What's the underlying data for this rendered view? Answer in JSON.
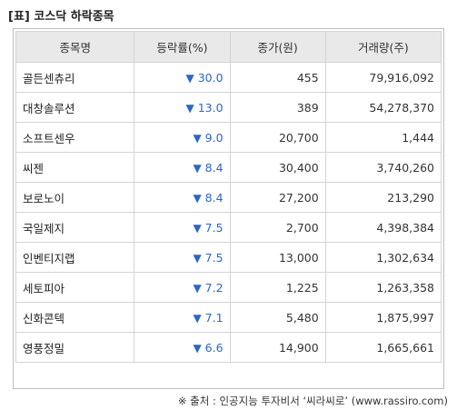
{
  "title": "[표] 코스닥 하락종목",
  "table": {
    "headers": [
      "종목명",
      "등락률(%)",
      "종가(원)",
      "거래량(주)"
    ],
    "rows": [
      {
        "name": "골든센츄리",
        "rate": "30.0",
        "close": "455",
        "volume": "79,916,092"
      },
      {
        "name": "대창솔루션",
        "rate": "13.0",
        "close": "389",
        "volume": "54,278,370"
      },
      {
        "name": "소프트센우",
        "rate": "9.0",
        "close": "20,700",
        "volume": "1,444"
      },
      {
        "name": "씨젠",
        "rate": "8.4",
        "close": "30,400",
        "volume": "3,740,260"
      },
      {
        "name": "보로노이",
        "rate": "8.4",
        "close": "27,200",
        "volume": "213,290"
      },
      {
        "name": "국일제지",
        "rate": "7.5",
        "close": "2,700",
        "volume": "4,398,384"
      },
      {
        "name": "인벤티지랩",
        "rate": "7.5",
        "close": "13,000",
        "volume": "1,302,634"
      },
      {
        "name": "세토피아",
        "rate": "7.2",
        "close": "1,225",
        "volume": "1,263,358"
      },
      {
        "name": "신화콘텍",
        "rate": "7.1",
        "close": "5,480",
        "volume": "1,875,997"
      },
      {
        "name": "영풍정밀",
        "rate": "6.6",
        "close": "14,900",
        "volume": "1,665,661"
      }
    ]
  },
  "source": "※ 출처 : 인공지능 투자비서 ‘씨라씨로’ (www.rassiro.com)",
  "icons": {
    "down": "▼"
  },
  "colors": {
    "down": "#2e66c4",
    "header_bg": "#e9e9e9",
    "border": "#d4d4d4"
  }
}
